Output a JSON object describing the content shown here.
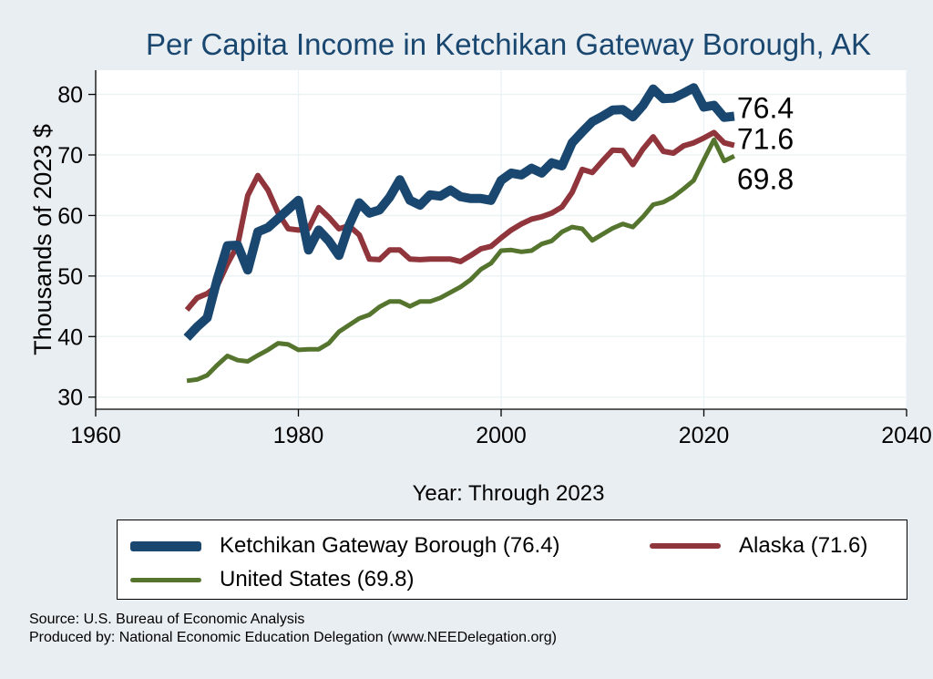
{
  "chart_data": {
    "type": "line",
    "title": "Per Capita Income in Ketchikan Gateway Borough, AK",
    "xlabel": "Year: Through 2023",
    "ylabel": "Thousands of 2023 $",
    "xlim": [
      1960,
      2040
    ],
    "ylim": [
      28,
      84
    ],
    "xticks": [
      1960,
      1980,
      2000,
      2020,
      2040
    ],
    "yticks": [
      30,
      40,
      50,
      60,
      70,
      80
    ],
    "grid": true,
    "legend_position": "bottom",
    "x": [
      1969,
      1970,
      1971,
      1972,
      1973,
      1974,
      1975,
      1976,
      1977,
      1978,
      1979,
      1980,
      1981,
      1982,
      1983,
      1984,
      1985,
      1986,
      1987,
      1988,
      1989,
      1990,
      1991,
      1992,
      1993,
      1994,
      1995,
      1996,
      1997,
      1998,
      1999,
      2000,
      2001,
      2002,
      2003,
      2004,
      2005,
      2006,
      2007,
      2008,
      2009,
      2010,
      2011,
      2012,
      2013,
      2014,
      2015,
      2016,
      2017,
      2018,
      2019,
      2020,
      2021,
      2022,
      2023
    ],
    "series": [
      {
        "name": "Ketchikan Gateway Borough (76.4)",
        "color": "#1a476f",
        "end_label": "76.4",
        "values": [
          39.8,
          41.6,
          43.1,
          49.5,
          55.0,
          55.1,
          51.0,
          57.3,
          58.0,
          59.5,
          61.0,
          62.5,
          54.3,
          57.6,
          55.8,
          53.4,
          58.4,
          62.1,
          60.4,
          60.9,
          63.0,
          65.9,
          62.5,
          61.7,
          63.4,
          63.2,
          64.2,
          63.1,
          62.8,
          62.8,
          62.5,
          65.8,
          67.0,
          66.7,
          67.8,
          67.0,
          68.7,
          68.2,
          72.0,
          73.8,
          75.5,
          76.4,
          77.4,
          77.5,
          76.3,
          78.2,
          80.9,
          79.3,
          79.4,
          80.2,
          81.1,
          77.9,
          78.2,
          76.2,
          76.4
        ]
      },
      {
        "name": "Alaska (71.6)",
        "color": "#90353b",
        "end_label": "71.6",
        "values": [
          44.4,
          46.4,
          47.1,
          48.4,
          52.0,
          55.1,
          63.3,
          66.6,
          64.2,
          60.4,
          57.8,
          57.6,
          57.8,
          61.3,
          59.7,
          57.8,
          58.3,
          56.8,
          52.8,
          52.7,
          54.3,
          54.3,
          52.8,
          52.7,
          52.8,
          52.8,
          52.8,
          52.4,
          53.4,
          54.5,
          54.9,
          56.3,
          57.6,
          58.6,
          59.4,
          59.8,
          60.4,
          61.4,
          63.8,
          67.6,
          67.1,
          69.0,
          70.8,
          70.7,
          68.4,
          71.0,
          73.0,
          70.6,
          70.3,
          71.5,
          72.0,
          72.8,
          73.7,
          72.0,
          71.6
        ]
      },
      {
        "name": "United States (69.8)",
        "color": "#55752f",
        "end_label": "69.8",
        "values": [
          32.7,
          32.9,
          33.6,
          35.3,
          36.8,
          36.1,
          35.9,
          36.9,
          37.8,
          38.9,
          38.7,
          37.8,
          37.9,
          37.9,
          38.9,
          40.8,
          41.9,
          43.0,
          43.6,
          44.9,
          45.8,
          45.8,
          45.0,
          45.8,
          45.8,
          46.4,
          47.3,
          48.2,
          49.4,
          51.1,
          52.1,
          54.2,
          54.3,
          54.0,
          54.2,
          55.3,
          55.8,
          57.3,
          58.1,
          57.8,
          55.9,
          56.9,
          57.9,
          58.6,
          58.1,
          59.8,
          61.8,
          62.2,
          63.1,
          64.4,
          65.8,
          69.2,
          72.5,
          69.0,
          69.8
        ]
      }
    ]
  },
  "source": "Source: U.S. Bureau of Economic Analysis",
  "produced_by": "Produced by: National Economic Education Delegation (www.NEEDelegation.org)"
}
